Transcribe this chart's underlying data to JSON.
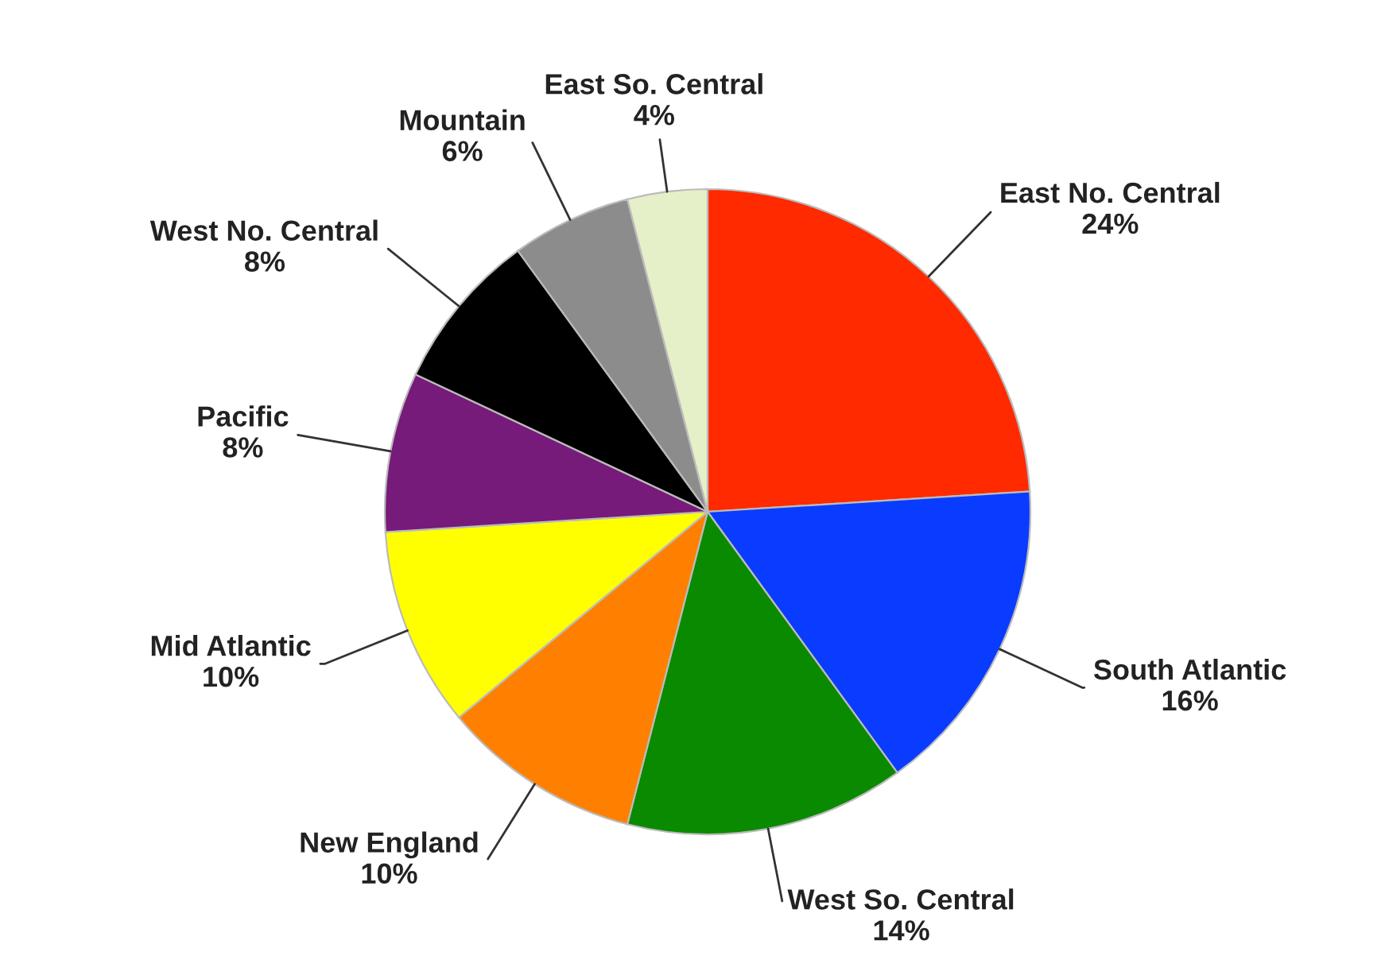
{
  "chart_data": {
    "type": "pie",
    "categories": [
      "East No. Central",
      "South Atlantic",
      "West So. Central",
      "New England",
      "Mid Atlantic",
      "Pacific",
      "West No. Central",
      "Mountain",
      "East So. Central"
    ],
    "values": [
      24,
      16,
      14,
      10,
      10,
      8,
      8,
      6,
      4
    ],
    "colors": [
      "#ff2a00",
      "#0a3cff",
      "#0a8a00",
      "#ff7f00",
      "#ffff00",
      "#761b7a",
      "#000000",
      "#8c8c8c",
      "#e6f0c8"
    ],
    "value_labels": [
      "24%",
      "16%",
      "14%",
      "10%",
      "10%",
      "8%",
      "8%",
      "6%",
      "4%"
    ]
  }
}
